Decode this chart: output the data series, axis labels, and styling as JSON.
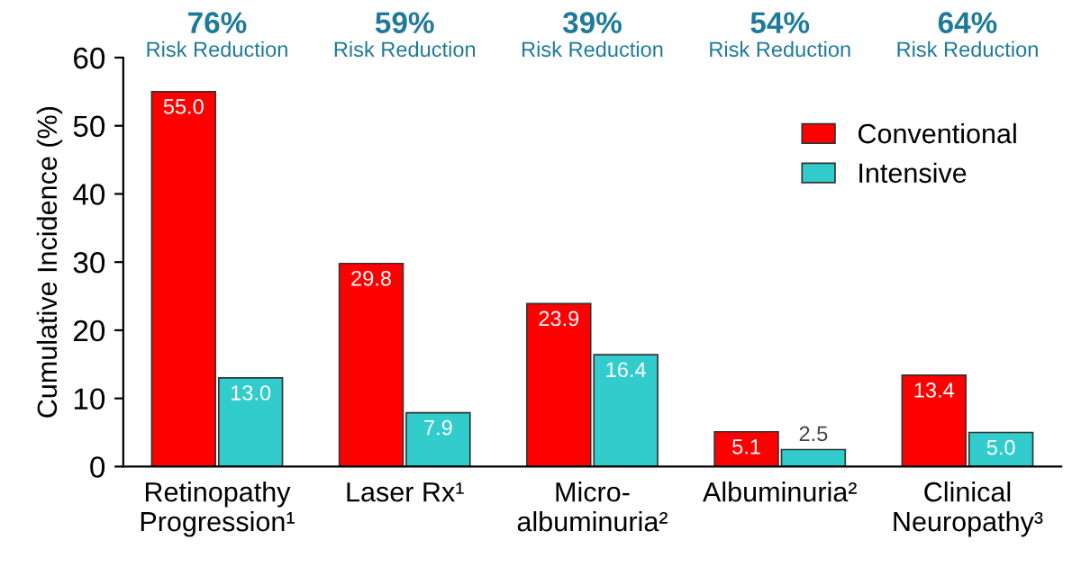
{
  "chart_data": {
    "type": "bar",
    "ylabel": "Cumulative Incidence (%)",
    "categories": [
      "Retinopathy\nProgression¹",
      "Laser Rx¹",
      "Micro-\nalbuminuria²",
      "Albuminuria²",
      "Clinical\nNeuropathy³"
    ],
    "series": [
      {
        "name": "Conventional",
        "color": "#ff0000",
        "values": [
          55.0,
          29.8,
          23.9,
          5.1,
          13.4
        ],
        "value_labels": [
          "55.0",
          "29.8",
          "23.9",
          "5.1",
          "13.4"
        ]
      },
      {
        "name": "Intensive",
        "color": "#33cccc",
        "values": [
          13.0,
          7.9,
          16.4,
          2.5,
          5.0
        ],
        "value_labels": [
          "13.0",
          "7.9",
          "16.4",
          "2.5",
          "5.0"
        ]
      }
    ],
    "annotations": [
      "76%\nRisk Reduction",
      "59%\nRisk Reduction",
      "39%\nRisk Reduction",
      "54%\nRisk Reduction",
      "64%\nRisk Reduction"
    ],
    "ylim": [
      0,
      60
    ],
    "yticks": [
      0,
      10,
      20,
      30,
      40,
      50,
      60
    ],
    "grid": false,
    "legend": "top right"
  }
}
